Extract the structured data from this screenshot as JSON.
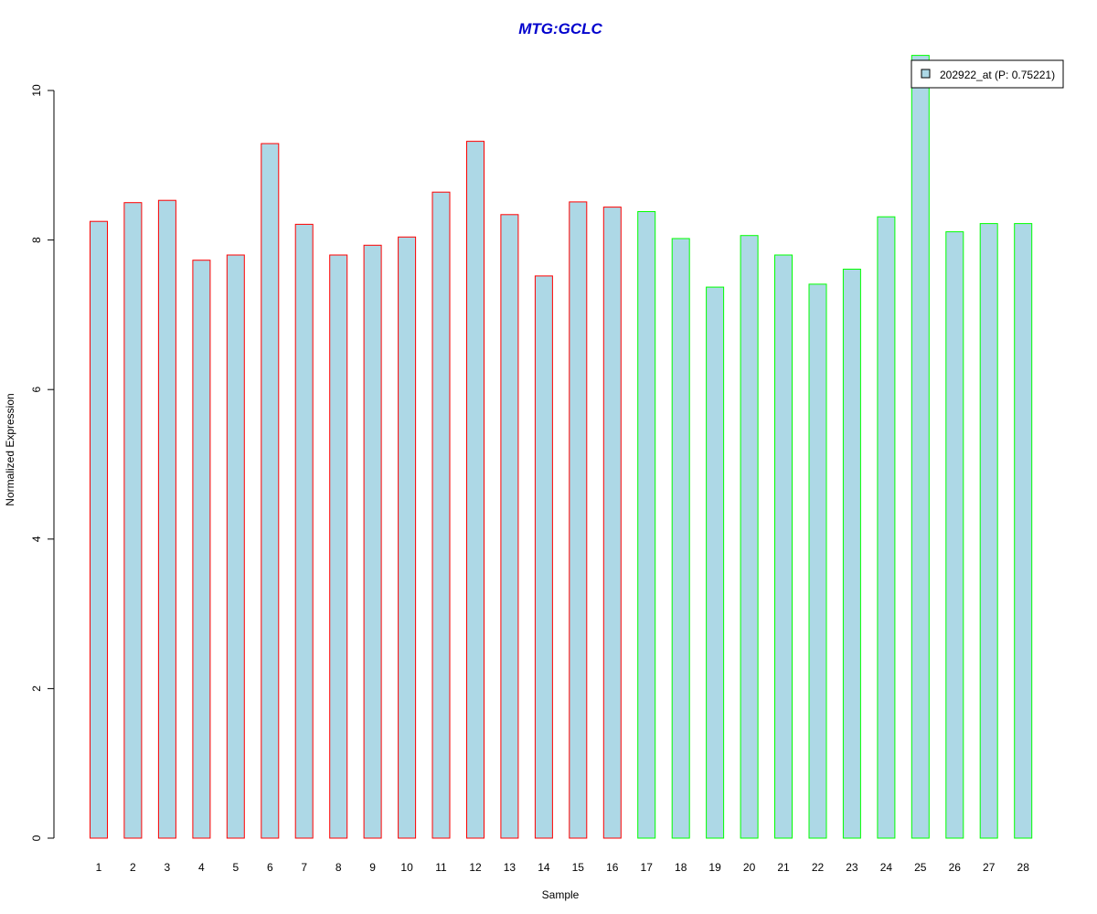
{
  "chart_data": {
    "type": "bar",
    "title": "MTG:GCLC",
    "xlabel": "Sample",
    "ylabel": "Normalized Expression",
    "ylim": [
      0,
      10
    ],
    "yticks": [
      0,
      2,
      4,
      6,
      8,
      10
    ],
    "grid": false,
    "legend_position": "top-right",
    "categories": [
      "1",
      "2",
      "3",
      "4",
      "5",
      "6",
      "7",
      "8",
      "9",
      "10",
      "11",
      "12",
      "13",
      "14",
      "15",
      "16",
      "17",
      "18",
      "19",
      "20",
      "21",
      "22",
      "23",
      "24",
      "25",
      "26",
      "27",
      "28"
    ],
    "series": [
      {
        "name": "202922_at (P: 0.75221)",
        "values": [
          8.25,
          8.5,
          8.53,
          7.73,
          7.8,
          9.29,
          8.21,
          7.8,
          7.93,
          8.04,
          8.64,
          9.32,
          8.34,
          7.52,
          8.51,
          8.44,
          8.38,
          8.02,
          7.37,
          8.06,
          7.8,
          7.41,
          7.61,
          8.31,
          10.47,
          8.11,
          8.22,
          8.22
        ],
        "fill_color": "#add8e6"
      }
    ],
    "group_colors": [
      "#ff0000",
      "#ff0000",
      "#ff0000",
      "#ff0000",
      "#ff0000",
      "#ff0000",
      "#ff0000",
      "#ff0000",
      "#ff0000",
      "#ff0000",
      "#ff0000",
      "#ff0000",
      "#ff0000",
      "#ff0000",
      "#ff0000",
      "#ff0000",
      "#00ff00",
      "#00ff00",
      "#00ff00",
      "#00ff00",
      "#00ff00",
      "#00ff00",
      "#00ff00",
      "#00ff00",
      "#00ff00",
      "#00ff00",
      "#00ff00",
      "#00ff00"
    ],
    "title_color": "#0000cd"
  }
}
